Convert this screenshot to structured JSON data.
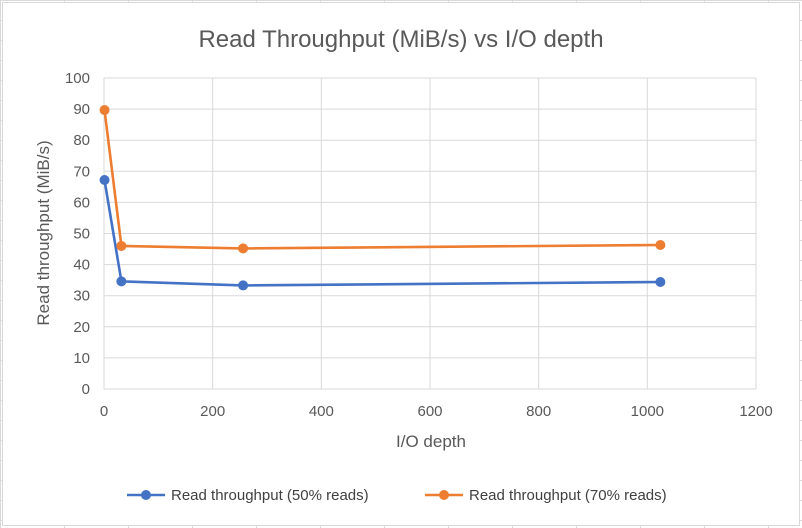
{
  "colors": {
    "series1": "#4472c4",
    "series2": "#ed7d31",
    "gridline": "#d9d9d9",
    "text": "#595959"
  },
  "chart_data": {
    "type": "scatter",
    "title": "Read Throughput (MiB/s) vs I/O depth",
    "xlabel": "I/O depth",
    "ylabel": "Read throughput (MiB/s)",
    "xlim": [
      0,
      1200
    ],
    "ylim": [
      0,
      100
    ],
    "xticks": [
      "0",
      "200",
      "400",
      "600",
      "800",
      "1000",
      "1200"
    ],
    "yticks": [
      "0",
      "10",
      "20",
      "30",
      "40",
      "50",
      "60",
      "70",
      "80",
      "90",
      "100"
    ],
    "grid": true,
    "legend": "bottom",
    "series": [
      {
        "name": "Read throughput (50% reads)",
        "x": [
          1,
          32,
          256,
          1024
        ],
        "y": [
          67.2,
          34.6,
          33.3,
          34.4
        ]
      },
      {
        "name": "Read throughput (70% reads)",
        "x": [
          1,
          32,
          256,
          1024
        ],
        "y": [
          89.7,
          46.0,
          45.2,
          46.3
        ]
      }
    ]
  }
}
